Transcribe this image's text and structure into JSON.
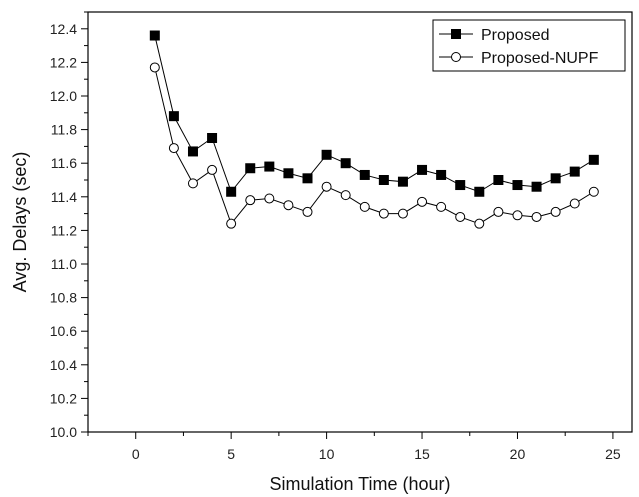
{
  "chart_data": {
    "type": "line",
    "xlabel": "Simulation Time (hour)",
    "ylabel": "Avg. Delays (sec)",
    "xlim": [
      -2.5,
      26
    ],
    "ylim": [
      10.0,
      12.5
    ],
    "xticks": [
      0,
      5,
      10,
      15,
      20,
      25
    ],
    "yticks": [
      10.0,
      10.2,
      10.4,
      10.6,
      10.8,
      11.0,
      11.2,
      11.4,
      11.6,
      11.8,
      12.0,
      12.2,
      12.4
    ],
    "ytick_labels": [
      "10.0",
      "10.2",
      "10.4",
      "10.6",
      "10.8",
      "11.0",
      "11.2",
      "11.4",
      "11.6",
      "11.8",
      "12.0",
      "12.2",
      "12.4"
    ],
    "grid": false,
    "legend": "top-right",
    "x": [
      1,
      2,
      3,
      4,
      5,
      6,
      7,
      8,
      9,
      10,
      11,
      12,
      13,
      14,
      15,
      16,
      17,
      18,
      19,
      20,
      21,
      22,
      23,
      24
    ],
    "series": [
      {
        "name": "Proposed",
        "marker": "square-filled",
        "color": "#000000",
        "values": [
          12.36,
          11.88,
          11.67,
          11.75,
          11.43,
          11.57,
          11.58,
          11.54,
          11.51,
          11.65,
          11.6,
          11.53,
          11.5,
          11.49,
          11.56,
          11.53,
          11.47,
          11.43,
          11.5,
          11.47,
          11.46,
          11.51,
          11.55,
          11.62
        ]
      },
      {
        "name": "Proposed-NUPF",
        "marker": "circle-open",
        "color": "#000000",
        "values": [
          12.17,
          11.69,
          11.48,
          11.56,
          11.24,
          11.38,
          11.39,
          11.35,
          11.31,
          11.46,
          11.41,
          11.34,
          11.3,
          11.3,
          11.37,
          11.34,
          11.28,
          11.24,
          11.31,
          11.29,
          11.28,
          11.31,
          11.36,
          11.43
        ]
      }
    ]
  }
}
